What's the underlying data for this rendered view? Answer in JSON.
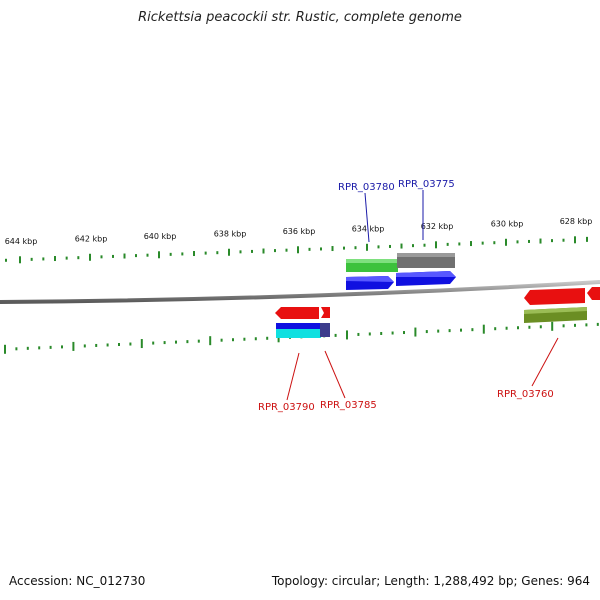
{
  "title": "Rickettsia peacockii str. Rustic, complete genome",
  "footer": {
    "accession": "Accession: NC_012730",
    "summary": "Topology: circular; Length: 1,288,492 bp; Genes: 964"
  },
  "ruler": {
    "tick_labels": [
      "644 kbp",
      "642 kbp",
      "640 kbp",
      "638 kbp",
      "636 kbp",
      "634 kbp",
      "632 kbp",
      "630 kbp",
      "628 kbp"
    ],
    "tick_color": "#2a8a2a"
  },
  "colors": {
    "backbone": "#8c8c8c",
    "forward_label": "#1a1aa8",
    "reverse_label": "#cc1111",
    "red_feature": "#e81010",
    "blue_feature": "#1010e0",
    "green_feature": "#3cc23c",
    "gray_feature": "#707070",
    "cyan_feature": "#10e0e0",
    "olive_feature": "#6b8e23",
    "navy_feature": "#3c3c8c"
  },
  "genes": {
    "forward": [
      "RPR_03780",
      "RPR_03775"
    ],
    "reverse": [
      "RPR_03790",
      "RPR_03785",
      "RPR_03760"
    ]
  }
}
